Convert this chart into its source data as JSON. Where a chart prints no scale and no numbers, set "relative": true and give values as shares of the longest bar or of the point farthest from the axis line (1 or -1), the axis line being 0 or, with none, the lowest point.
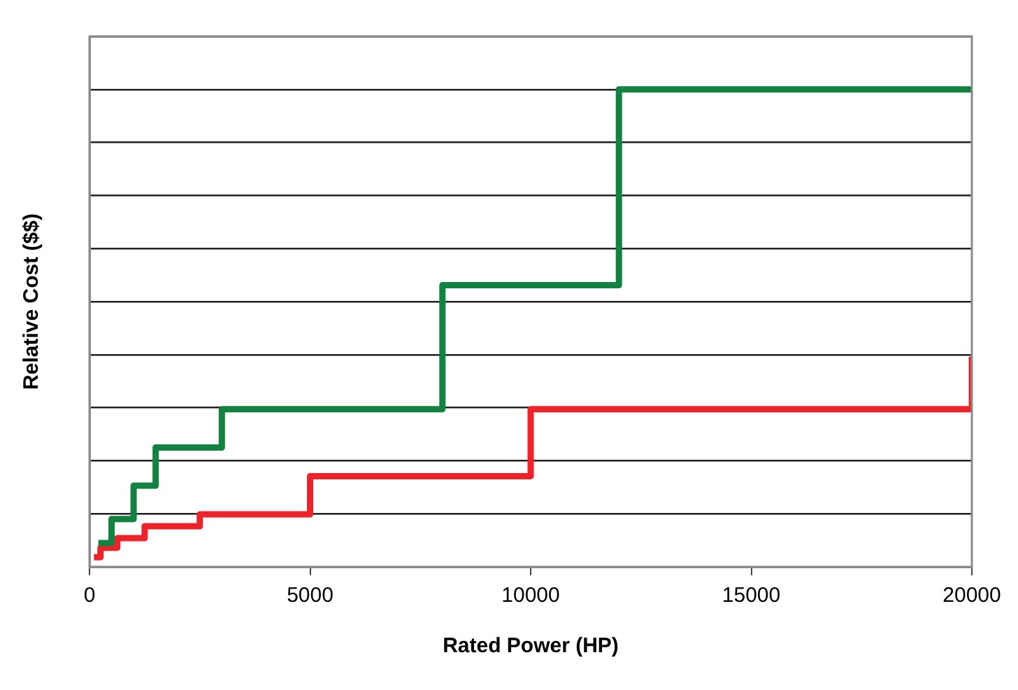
{
  "chart_data": {
    "type": "step",
    "xlabel": "Rated Power (HP)",
    "ylabel": "Relative Cost ($$)",
    "relative": true,
    "xlim": [
      0,
      20000
    ],
    "xticks": [
      0,
      5000,
      10000,
      15000,
      20000
    ],
    "grid": "y",
    "legend": false,
    "line_style": "solid",
    "marker": "none",
    "series": [
      {
        "color": "#13813f",
        "x": [
          200,
          500,
          1000,
          1500,
          3000,
          8000,
          12000,
          20000
        ],
        "values": [
          0.05,
          0.1,
          0.17,
          0.25,
          0.33,
          0.59,
          1,
          1
        ]
      },
      {
        "color": "#ee2229",
        "x": [
          100,
          250,
          630,
          1250,
          2500,
          5000,
          10000,
          20000,
          20000
        ],
        "values": [
          0.02,
          0.04,
          0.06,
          0.085,
          0.11,
          0.19,
          0.33,
          0.33,
          0.44
        ]
      }
    ]
  }
}
